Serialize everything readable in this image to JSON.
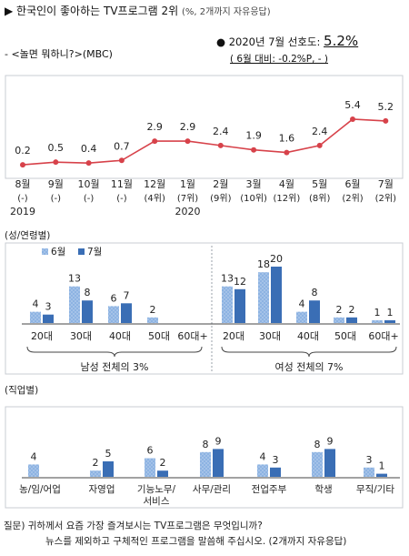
{
  "header": {
    "title": "▶ 한국인이 좋아하는 TV프로그램 2위",
    "title_note": "(%, 2개까지 자유응답)",
    "program": "- <놀면 뭐하니?>(MBC)",
    "rating_prefix": "2020년 7월 선호도:",
    "rating_value": "5.2%",
    "rating_diff": "( 6월 대비: -0.2%P, - )"
  },
  "footer": {
    "question_line1": "질문) 귀하께서 요즘 가장 즐겨보시는 TV프로그램은 무엇입니까?",
    "question_line2": "뉴스를 제외하고 구체적인 프로그램을 말씀해 주십시오. (2개까지 자유응답)"
  },
  "colors": {
    "trend_line": "#d7424a",
    "june": "#8db3e2",
    "july": "#3a6eb5",
    "frame": "#c9ccd3"
  },
  "chart_data": [
    {
      "type": "line",
      "x": [
        "8월\n(-)",
        "9월\n(-)",
        "10월\n(-)",
        "11월\n(-)",
        "12월\n(4위)",
        "1월\n(7위)",
        "2월\n(9위)",
        "3월\n(10위)",
        "4월\n(12위)",
        "5월\n(8위)",
        "6월\n(2위)",
        "7월\n(2위)"
      ],
      "year_labels": [
        {
          "index": 0,
          "text": "2019"
        },
        {
          "index": 5,
          "text": "2020"
        }
      ],
      "values": [
        0.2,
        0.5,
        0.4,
        0.7,
        2.9,
        2.9,
        2.4,
        1.9,
        1.6,
        2.4,
        5.4,
        5.2
      ],
      "ylim": [
        0,
        6.5
      ]
    },
    {
      "type": "bar",
      "section_label": "(성/연령별)",
      "legend": [
        {
          "symbol": "■",
          "text": "6월"
        },
        {
          "symbol": "■",
          "text": "7월"
        }
      ],
      "categories": [
        "20대",
        "30대",
        "40대",
        "50대",
        "60대+",
        "20대",
        "30대",
        "40대",
        "50대",
        "60대+"
      ],
      "series": [
        {
          "name": "6월",
          "values": [
            4,
            13,
            6,
            2,
            null,
            13,
            18,
            4,
            2,
            1
          ]
        },
        {
          "name": "7월",
          "values": [
            3,
            8,
            7,
            null,
            null,
            12,
            20,
            8,
            2,
            1
          ]
        }
      ],
      "groups": [
        {
          "label": "남성 전체의 3%",
          "from": 0,
          "to": 4
        },
        {
          "label": "여성 전체의 7%",
          "from": 5,
          "to": 9
        }
      ],
      "ylim": [
        0,
        22
      ]
    },
    {
      "type": "bar",
      "section_label": "(직업별)",
      "categories": [
        "농/임/어업",
        "자영업",
        "기능노무/\n서비스",
        "사무/관리",
        "전업주부",
        "학생",
        "무직/기타"
      ],
      "series": [
        {
          "name": "6월",
          "values": [
            4,
            2,
            6,
            8,
            4,
            8,
            3
          ]
        },
        {
          "name": "7월",
          "values": [
            null,
            5,
            2,
            9,
            3,
            9,
            1
          ]
        }
      ],
      "ylim": [
        0,
        11
      ]
    }
  ]
}
